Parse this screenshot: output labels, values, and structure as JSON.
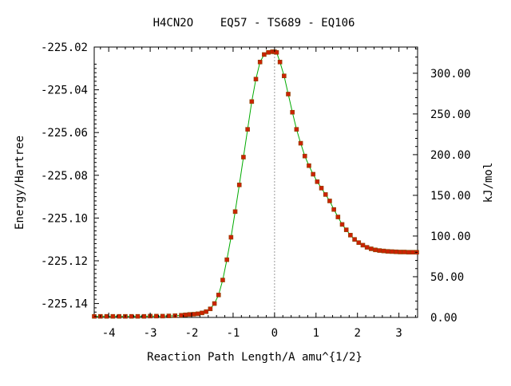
{
  "chart_data": {
    "type": "line",
    "title": "H4CN2O    EQ57 - TS689 - EQ106",
    "xlabel": "Reaction Path Length/A amu^{1/2}",
    "ylabel_left": "Energy/Hartree",
    "ylabel_right": "kJ/mol",
    "xlim": [
      -4.35,
      3.45
    ],
    "ylim": [
      -225.1465,
      -225.02
    ],
    "ylim_right": [
      0.0,
      332.2
    ],
    "x_ticks": [
      -4,
      -3,
      -2,
      -1,
      0,
      1,
      2,
      3
    ],
    "x_tick_labels": [
      "-4",
      "-3",
      "-2",
      "-1",
      "0",
      "1",
      "2",
      "3"
    ],
    "y_ticks_left": [
      -225.14,
      -225.12,
      -225.1,
      -225.08,
      -225.06,
      -225.04,
      -225.02
    ],
    "y_tick_labels_left": [
      "-225.14",
      "-225.12",
      "-225.10",
      "-225.08",
      "-225.06",
      "-225.04",
      "-225.02"
    ],
    "y_ticks_right": [
      0,
      50,
      100,
      150,
      200,
      250,
      300
    ],
    "y_tick_labels_right": [
      "0.00",
      "50.00",
      "100.00",
      "150.00",
      "200.00",
      "250.00",
      "300.00"
    ],
    "ts_marker_x": 0.0,
    "grid": false,
    "colors": {
      "curve": "#00aa00",
      "points": "#cc2200",
      "point_outline": "#884400",
      "ts_line": "#999999"
    },
    "series": [
      {
        "x": [
          -4.35,
          -4.2,
          -4.05,
          -3.9,
          -3.75,
          -3.6,
          -3.45,
          -3.3,
          -3.15,
          -3.0,
          -2.85,
          -2.7,
          -2.55,
          -2.4,
          -2.25,
          -2.15,
          -2.05,
          -1.95,
          -1.85,
          -1.75,
          -1.65,
          -1.55,
          -1.45,
          -1.35,
          -1.25,
          -1.15,
          -1.05,
          -0.95,
          -0.85,
          -0.75,
          -0.65,
          -0.55,
          -0.45,
          -0.35,
          -0.25,
          -0.15,
          -0.05,
          0.0,
          0.05,
          0.13,
          0.23,
          0.33,
          0.43,
          0.53,
          0.63,
          0.73,
          0.83,
          0.93,
          1.03,
          1.13,
          1.23,
          1.33,
          1.43,
          1.53,
          1.63,
          1.73,
          1.83,
          1.93,
          2.03,
          2.13,
          2.23,
          2.33,
          2.43,
          2.53,
          2.63,
          2.73,
          2.83,
          2.93,
          3.03,
          3.13,
          3.23,
          3.33,
          3.43
        ],
        "y": [
          -225.146,
          -225.146,
          -225.146,
          -225.146,
          -225.146,
          -225.146,
          -225.146,
          -225.146,
          -225.146,
          -225.1459,
          -225.1459,
          -225.1459,
          -225.1458,
          -225.1457,
          -225.1455,
          -225.1453,
          -225.1451,
          -225.145,
          -225.1448,
          -225.1444,
          -225.1438,
          -225.1425,
          -225.14,
          -225.136,
          -225.129,
          -225.1195,
          -225.109,
          -225.097,
          -225.0845,
          -225.0715,
          -225.0585,
          -225.0455,
          -225.035,
          -225.027,
          -225.0235,
          -225.0225,
          -225.0222,
          -225.0222,
          -225.0225,
          -225.027,
          -225.0335,
          -225.042,
          -225.0505,
          -225.0585,
          -225.065,
          -225.071,
          -225.0755,
          -225.0795,
          -225.083,
          -225.086,
          -225.089,
          -225.092,
          -225.096,
          -225.0995,
          -225.103,
          -225.1055,
          -225.108,
          -225.11,
          -225.1115,
          -225.1127,
          -225.1137,
          -225.1144,
          -225.1149,
          -225.1152,
          -225.1154,
          -225.1156,
          -225.1157,
          -225.1158,
          -225.1159,
          -225.1159,
          -225.116,
          -225.116,
          -225.116
        ]
      }
    ]
  }
}
